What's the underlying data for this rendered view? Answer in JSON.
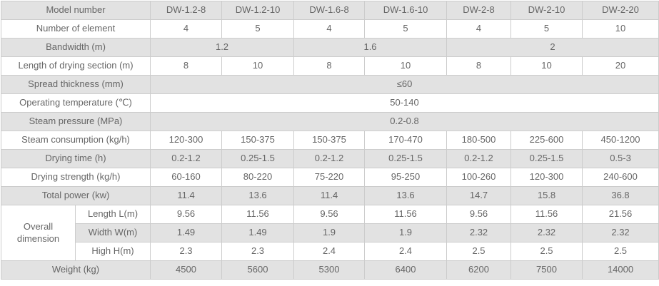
{
  "chart_data": {
    "type": "table",
    "title": "DW series dryer specification table",
    "colors": {
      "shaded_row": "#e2e2e2",
      "border": "#cccccc",
      "text": "#666666",
      "row_bg": "#ffffff"
    },
    "header": {
      "label": "Model number",
      "shaded": true,
      "models": [
        "DW-1.2-8",
        "DW-1.2-10",
        "DW-1.6-8",
        "DW-1.6-10",
        "DW-2-8",
        "DW-2-10",
        "DW-2-20"
      ]
    },
    "rows": [
      {
        "label": "Number of element",
        "shaded": false,
        "cells": [
          {
            "text": "4"
          },
          {
            "text": "5"
          },
          {
            "text": "4"
          },
          {
            "text": "5"
          },
          {
            "text": "4"
          },
          {
            "text": "5"
          },
          {
            "text": "10"
          }
        ]
      },
      {
        "label": "Bandwidth (m)",
        "shaded": true,
        "cells": [
          {
            "text": "1.2",
            "span": 2
          },
          {
            "text": "1.6",
            "span": 2
          },
          {
            "text": "2",
            "span": 3
          }
        ]
      },
      {
        "label": "Length of drying section (m)",
        "shaded": false,
        "cells": [
          {
            "text": "8"
          },
          {
            "text": "10"
          },
          {
            "text": "8"
          },
          {
            "text": "10"
          },
          {
            "text": "8"
          },
          {
            "text": "10"
          },
          {
            "text": "20"
          }
        ]
      },
      {
        "label": "Spread thickness (mm)",
        "shaded": true,
        "cells": [
          {
            "text": "≤60",
            "span": 7
          }
        ]
      },
      {
        "label": "Operating temperature (℃)",
        "shaded": false,
        "cells": [
          {
            "text": "50-140",
            "span": 7
          }
        ]
      },
      {
        "label": "Steam pressure (MPa)",
        "shaded": true,
        "cells": [
          {
            "text": "0.2-0.8",
            "span": 7
          }
        ]
      },
      {
        "label": "Steam consumption (kg/h)",
        "shaded": false,
        "cells": [
          {
            "text": "120-300"
          },
          {
            "text": "150-375"
          },
          {
            "text": "150-375"
          },
          {
            "text": "170-470"
          },
          {
            "text": "180-500"
          },
          {
            "text": "225-600"
          },
          {
            "text": "450-1200"
          }
        ]
      },
      {
        "label": "Drying time (h)",
        "shaded": true,
        "cells": [
          {
            "text": "0.2-1.2"
          },
          {
            "text": "0.25-1.5"
          },
          {
            "text": "0.2-1.2"
          },
          {
            "text": "0.25-1.5"
          },
          {
            "text": "0.2-1.2"
          },
          {
            "text": "0.25-1.5"
          },
          {
            "text": "0.5-3"
          }
        ]
      },
      {
        "label": "Drying strength (kg/h)",
        "shaded": false,
        "cells": [
          {
            "text": "60-160"
          },
          {
            "text": "80-220"
          },
          {
            "text": "75-220"
          },
          {
            "text": "95-250"
          },
          {
            "text": "100-260"
          },
          {
            "text": "120-300"
          },
          {
            "text": "240-600"
          }
        ]
      },
      {
        "label": "Total power (kw)",
        "shaded": true,
        "cells": [
          {
            "text": "11.4"
          },
          {
            "text": "13.6"
          },
          {
            "text": "11.4"
          },
          {
            "text": "13.6"
          },
          {
            "text": "14.7"
          },
          {
            "text": "15.8"
          },
          {
            "text": "36.8"
          }
        ]
      }
    ],
    "dimension_group": {
      "label": "Overall dimension",
      "rows": [
        {
          "sublabel": "Length L(m)",
          "shaded": false,
          "cells": [
            "9.56",
            "11.56",
            "9.56",
            "11.56",
            "9.56",
            "11.56",
            "21.56"
          ]
        },
        {
          "sublabel": "Width W(m)",
          "shaded": true,
          "cells": [
            "1.49",
            "1.49",
            "1.9",
            "1.9",
            "2.32",
            "2.32",
            "2.32"
          ]
        },
        {
          "sublabel": "High H(m)",
          "shaded": false,
          "cells": [
            "2.3",
            "2.3",
            "2.4",
            "2.4",
            "2.5",
            "2.5",
            "2.5"
          ]
        }
      ]
    },
    "footer_row": {
      "label": "Weight (kg)",
      "shaded": true,
      "cells": [
        "4500",
        "5600",
        "5300",
        "6400",
        "6200",
        "7500",
        "14000"
      ]
    }
  }
}
